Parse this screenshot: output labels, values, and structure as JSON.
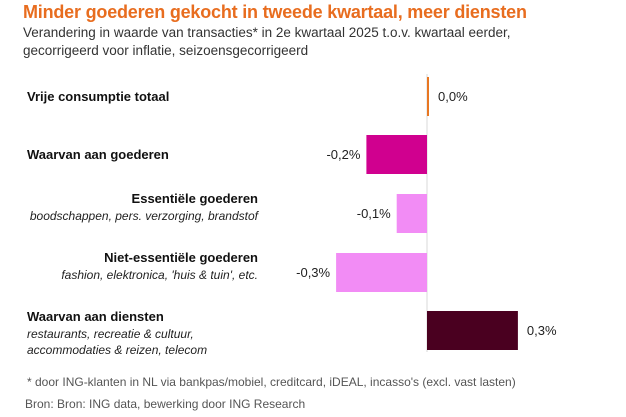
{
  "chart_data": {
    "type": "bar",
    "orientation": "horizontal",
    "title": "Minder goederen gekocht in tweede kwartaal, meer diensten",
    "subtitle": [
      "Verandering in waarde van transacties* in 2e kwartaal 2025 t.o.v. kwartaal eerder,",
      "gecorrigeerd voor inflatie, seizoensgecorrigeerd"
    ],
    "categories": [
      {
        "label": "Vrije consumptie totaal",
        "sublabel": ""
      },
      {
        "label": "Waarvan aan goederen",
        "sublabel": ""
      },
      {
        "label": "Essentiële goederen",
        "sublabel": "boodschappen, pers. verzorging, brandstof"
      },
      {
        "label": "Niet-essentiële goederen",
        "sublabel": "fashion, elektronica, 'huis & tuin', etc."
      },
      {
        "label": "Waarvan aan diensten",
        "sublabel_lines": [
          "restaurants, recreatie & cultuur,",
          "accommodaties & reizen, telecom"
        ]
      }
    ],
    "values": [
      0.0,
      -0.2,
      -0.1,
      -0.3,
      0.3
    ],
    "value_labels": [
      "0,0%",
      "-0,2%",
      "-0,1%",
      "-0,3%",
      "0,3%"
    ],
    "colors": [
      "#e87722",
      "#d0008f",
      "#f28cf5",
      "#f28cf5",
      "#4a0020"
    ],
    "xlabel": "",
    "ylabel": "",
    "xlim": [
      -0.3,
      0.3
    ],
    "grid": false
  },
  "footnote": "* door ING-klanten in NL via bankpas/mobiel, creditcard, iDEAL, incasso's (excl. vast lasten)",
  "source": "Bron: Bron: ING data, bewerking door ING Research"
}
